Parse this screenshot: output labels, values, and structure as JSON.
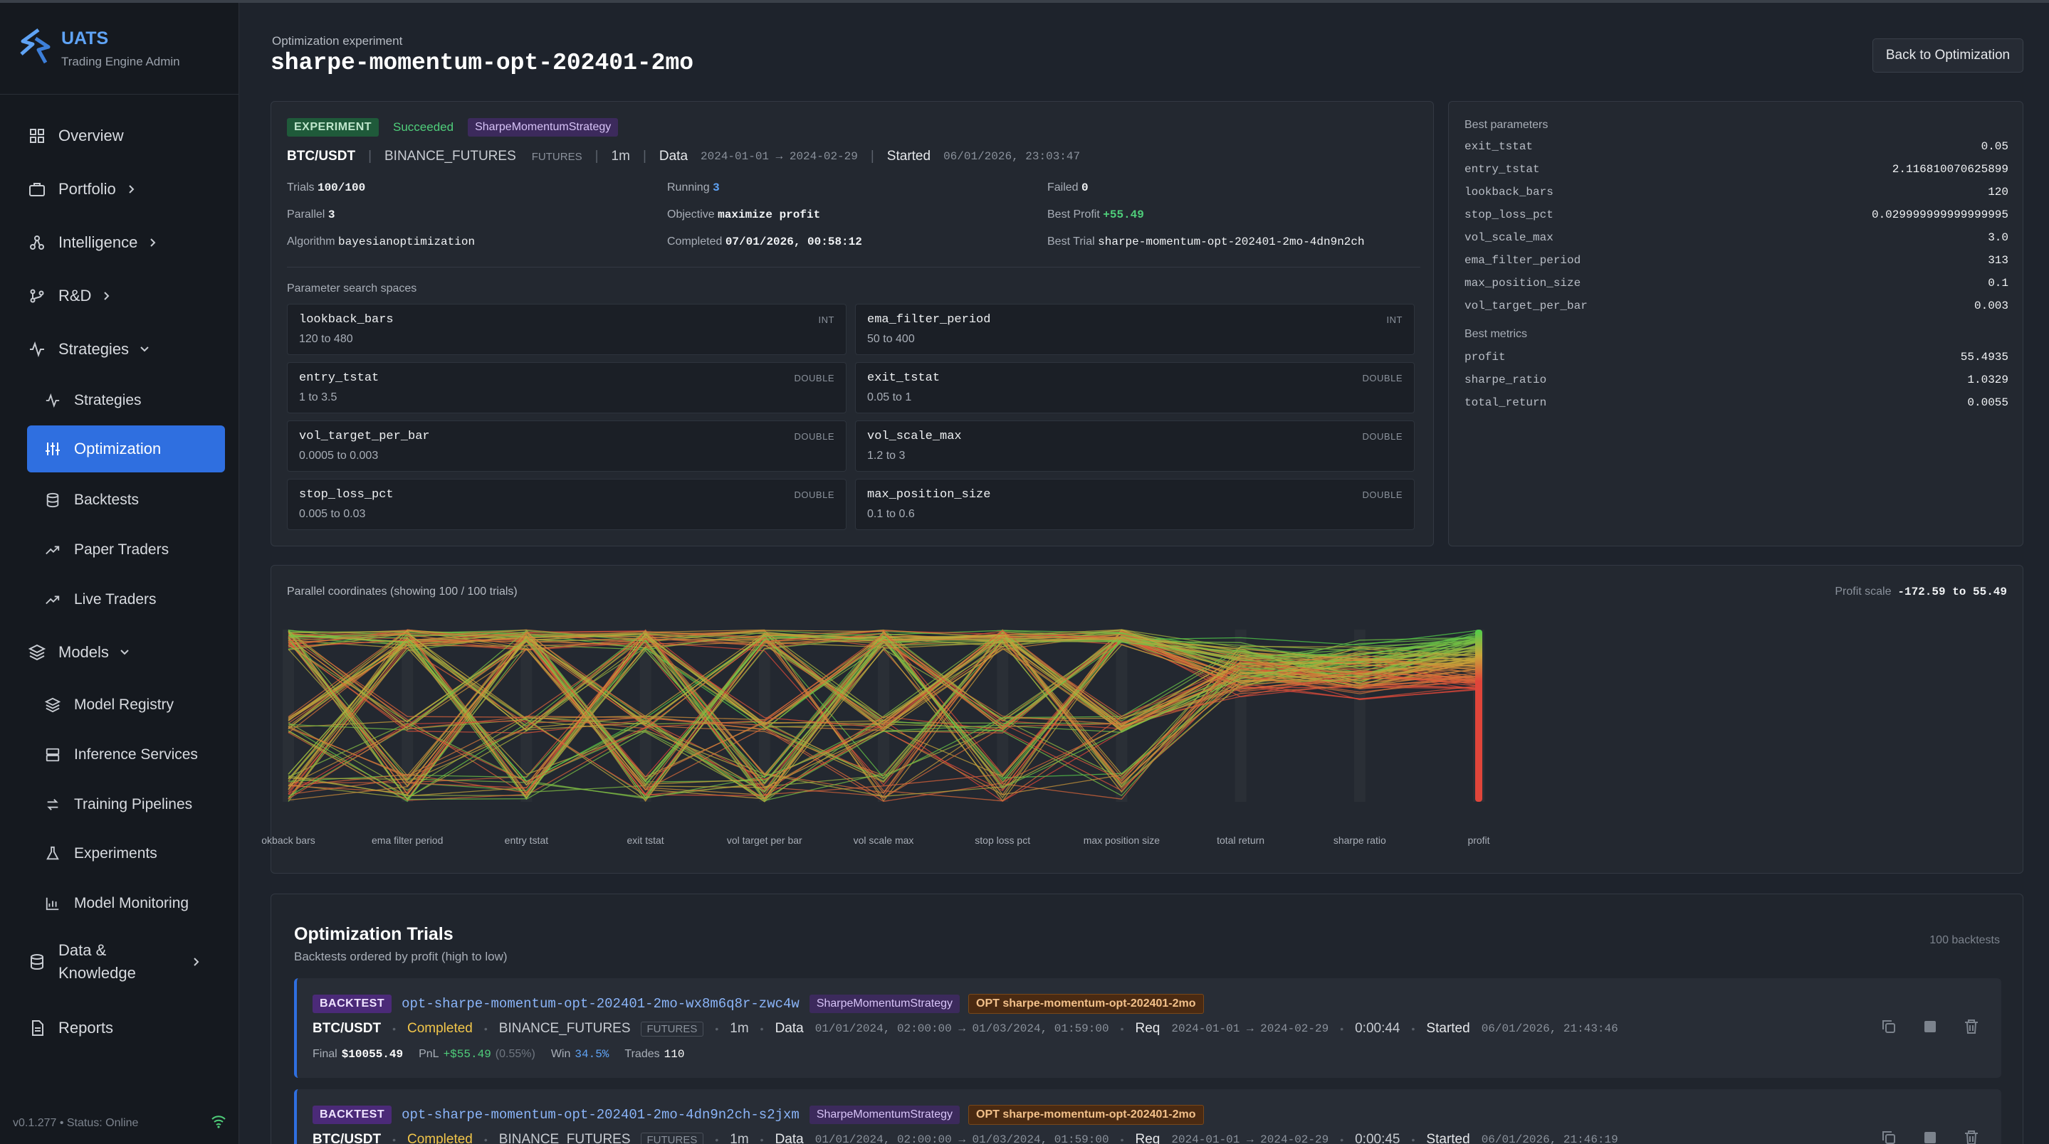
{
  "app": {
    "name": "UATS",
    "subtitle": "Trading Engine Admin",
    "version_status": "v0.1.277 • Status: Online"
  },
  "sidebar": {
    "items": [
      {
        "label": "Overview",
        "icon": "grid-icon"
      },
      {
        "label": "Portfolio",
        "icon": "briefcase-icon",
        "chevron": "right"
      },
      {
        "label": "Intelligence",
        "icon": "network-icon",
        "chevron": "right"
      },
      {
        "label": "R&D",
        "icon": "branch-icon",
        "chevron": "right"
      },
      {
        "label": "Strategies",
        "icon": "pulse-icon",
        "chevron": "down"
      },
      {
        "label": "Strategies",
        "icon": "pulse-icon",
        "sub": true
      },
      {
        "label": "Optimization",
        "icon": "sliders-icon",
        "sub": true,
        "active": true
      },
      {
        "label": "Backtests",
        "icon": "database-icon",
        "sub": true
      },
      {
        "label": "Paper Traders",
        "icon": "trend-icon",
        "sub": true
      },
      {
        "label": "Live Traders",
        "icon": "trend-icon",
        "sub": true
      },
      {
        "label": "Models",
        "icon": "layers-icon",
        "chevron": "down"
      },
      {
        "label": "Model Registry",
        "icon": "layers-icon",
        "sub": true
      },
      {
        "label": "Inference Services",
        "icon": "server-icon",
        "sub": true
      },
      {
        "label": "Training Pipelines",
        "icon": "refresh-icon",
        "sub": true
      },
      {
        "label": "Experiments",
        "icon": "flask-icon",
        "sub": true
      },
      {
        "label": "Model Monitoring",
        "icon": "bar-chart-icon",
        "sub": true
      },
      {
        "label": "Data &\nKnowledge",
        "icon": "database-icon",
        "chevron": "right"
      },
      {
        "label": "Reports",
        "icon": "file-icon"
      }
    ]
  },
  "header": {
    "breadcrumb": "Optimization experiment",
    "title": "sharpe-momentum-opt-202401-2mo",
    "back_button": "Back to Optimization"
  },
  "experiment": {
    "tag": "EXPERIMENT",
    "status": "Succeeded",
    "strategy": "SharpeMomentumStrategy",
    "symbol": "BTC/USDT",
    "exchange": "BINANCE_FUTURES",
    "market": "FUTURES",
    "interval": "1m",
    "data_label": "Data",
    "data_range": "2024-01-01 → 2024-02-29",
    "started_label": "Started",
    "started": "06/01/2026, 23:03:47",
    "trials_label": "Trials",
    "trials": "100/100",
    "running_label": "Running",
    "running": "3",
    "failed_label": "Failed",
    "failed": "0",
    "parallel_label": "Parallel",
    "parallel": "3",
    "objective_label": "Objective",
    "objective": "maximize profit",
    "best_profit_label": "Best Profit",
    "best_profit": "+55.49",
    "algorithm_label": "Algorithm",
    "algorithm": "bayesianoptimization",
    "completed_label": "Completed",
    "completed": "07/01/2026, 00:58:12",
    "best_trial_label": "Best Trial",
    "best_trial": "sharpe-momentum-opt-202401-2mo-4dn9n2ch",
    "search_spaces_label": "Parameter search spaces",
    "search_spaces": [
      {
        "name": "lookback_bars",
        "type": "INT",
        "range": "120 to 480"
      },
      {
        "name": "ema_filter_period",
        "type": "INT",
        "range": "50 to 400"
      },
      {
        "name": "entry_tstat",
        "type": "DOUBLE",
        "range": "1 to 3.5"
      },
      {
        "name": "exit_tstat",
        "type": "DOUBLE",
        "range": "0.05 to 1"
      },
      {
        "name": "vol_target_per_bar",
        "type": "DOUBLE",
        "range": "0.0005 to 0.003"
      },
      {
        "name": "vol_scale_max",
        "type": "DOUBLE",
        "range": "1.2 to 3"
      },
      {
        "name": "stop_loss_pct",
        "type": "DOUBLE",
        "range": "0.005 to 0.03"
      },
      {
        "name": "max_position_size",
        "type": "DOUBLE",
        "range": "0.1 to 0.6"
      }
    ]
  },
  "best": {
    "params_label": "Best parameters",
    "params": [
      {
        "k": "exit_tstat",
        "v": "0.05"
      },
      {
        "k": "entry_tstat",
        "v": "2.116810070625899"
      },
      {
        "k": "lookback_bars",
        "v": "120"
      },
      {
        "k": "stop_loss_pct",
        "v": "0.029999999999999995"
      },
      {
        "k": "vol_scale_max",
        "v": "3.0"
      },
      {
        "k": "ema_filter_period",
        "v": "313"
      },
      {
        "k": "max_position_size",
        "v": "0.1"
      },
      {
        "k": "vol_target_per_bar",
        "v": "0.003"
      }
    ],
    "metrics_label": "Best metrics",
    "metrics": [
      {
        "k": "profit",
        "v": "55.4935"
      },
      {
        "k": "sharpe_ratio",
        "v": "1.0329"
      },
      {
        "k": "total_return",
        "v": "0.0055"
      }
    ]
  },
  "parallel_coords": {
    "title": "Parallel coordinates (showing 100 / 100 trials)",
    "scale_label": "Profit scale",
    "scale_range": "-172.59 to 55.49",
    "axes": [
      "okback bars",
      "ema filter period",
      "entry tstat",
      "exit tstat",
      "vol target per bar",
      "vol scale max",
      "stop loss pct",
      "max position size",
      "total return",
      "sharpe ratio",
      "profit"
    ],
    "colors": {
      "low": "#e0453a",
      "mid": "#c9a53a",
      "high": "#4fce4a"
    }
  },
  "trials": {
    "title": "Optimization Trials",
    "subtitle": "Backtests ordered by profit (high to low)",
    "count": "100 backtests",
    "rows": [
      {
        "tag": "BACKTEST",
        "name": "opt-sharpe-momentum-opt-202401-2mo-wx8m6q8r-zwc4w",
        "strategy": "SharpeMomentumStrategy",
        "opt": "OPT sharpe-momentum-opt-202401-2mo",
        "symbol": "BTC/USDT",
        "status": "Completed",
        "exchange": "BINANCE_FUTURES",
        "market": "FUTURES",
        "interval": "1m",
        "data_label": "Data",
        "data": "01/01/2024, 02:00:00 → 01/03/2024, 01:59:00",
        "req_label": "Req",
        "req": "2024-01-01 → 2024-02-29",
        "duration": "0:00:44",
        "started_label": "Started",
        "started": "06/01/2026, 21:43:46",
        "final_label": "Final",
        "final": "$10055.49",
        "pnl_label": "PnL",
        "pnl": "+$55.49",
        "pnl_pct": "(0.55%)",
        "win_label": "Win",
        "win": "34.5%",
        "trades_label": "Trades",
        "trades": "110"
      },
      {
        "tag": "BACKTEST",
        "name": "opt-sharpe-momentum-opt-202401-2mo-4dn9n2ch-s2jxm",
        "strategy": "SharpeMomentumStrategy",
        "opt": "OPT sharpe-momentum-opt-202401-2mo",
        "symbol": "BTC/USDT",
        "status": "Completed",
        "exchange": "BINANCE_FUTURES",
        "market": "FUTURES",
        "interval": "1m",
        "data_label": "Data",
        "data": "01/01/2024, 02:00:00 → 01/03/2024, 01:59:00",
        "req_label": "Req",
        "req": "2024-01-01 → 2024-02-29",
        "duration": "0:00:45",
        "started_label": "Started",
        "started": "06/01/2026, 21:46:19"
      }
    ]
  }
}
